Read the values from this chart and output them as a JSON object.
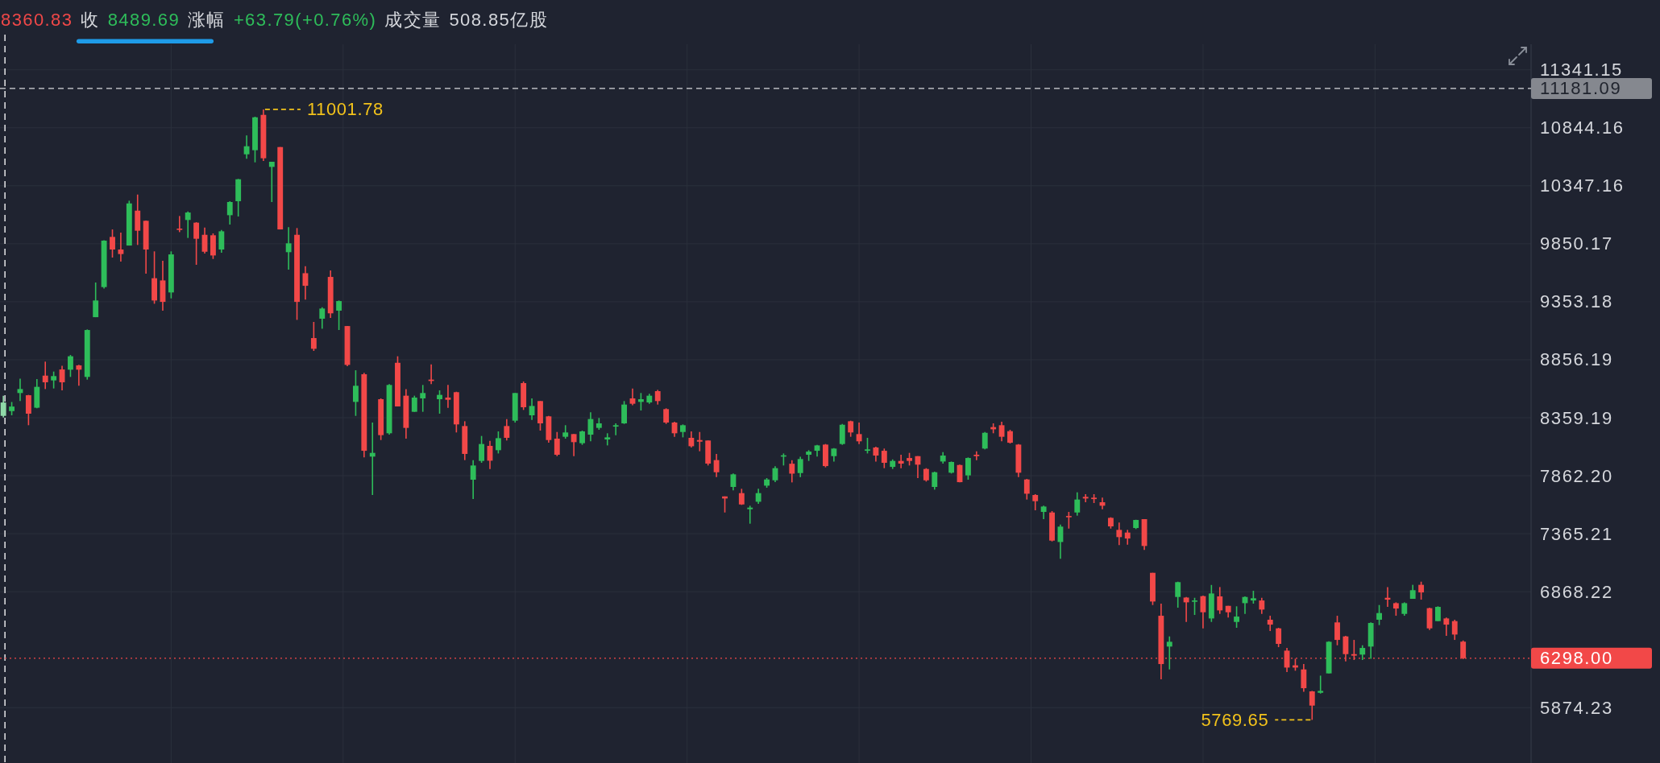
{
  "chart_data": {
    "type": "candlestick",
    "title": "8360.83 收 8489.69 涨幅 +63.79(+0.76%) 成交量 508.85亿股",
    "categories": [
      null,
      null,
      null,
      null,
      null,
      null,
      null,
      null,
      null,
      null,
      null,
      null,
      null,
      null,
      null,
      null,
      null,
      null,
      null,
      null,
      null,
      null,
      null,
      null,
      null,
      null,
      null,
      null,
      null,
      null,
      null,
      null,
      null,
      null,
      null,
      null,
      null,
      null,
      null,
      null,
      null,
      null,
      null,
      null,
      null,
      null,
      null,
      null,
      null,
      null,
      null,
      null,
      null,
      null,
      null,
      null,
      null,
      null,
      null,
      null,
      null,
      null,
      null,
      null,
      null,
      null,
      null,
      null,
      null,
      null,
      null,
      null,
      null,
      null,
      null,
      null,
      null,
      null,
      null,
      null,
      null,
      null,
      null,
      null,
      null,
      null,
      null,
      null,
      null,
      null,
      null,
      null,
      null,
      null,
      null,
      null,
      null,
      null,
      null,
      null,
      null,
      null,
      null,
      null,
      null,
      null,
      null,
      null,
      null,
      null,
      null,
      null,
      null,
      null,
      null,
      null,
      null,
      null,
      null,
      null,
      null,
      null,
      null,
      null,
      null,
      null,
      null,
      null,
      null,
      null,
      null,
      null,
      null,
      null,
      null,
      null,
      null,
      null,
      null,
      null,
      null,
      null,
      null,
      null,
      null,
      null,
      null,
      null,
      null,
      null,
      null,
      null,
      null,
      null,
      null,
      null,
      null,
      null,
      null,
      null,
      null,
      null,
      null,
      null,
      null,
      null,
      null,
      null,
      null,
      null,
      null,
      null,
      null,
      null,
      null
    ],
    "ohlc": [
      [
        8375,
        8548,
        8360.83,
        8489.69
      ],
      [
        8416,
        8494,
        8380,
        8455
      ],
      [
        8571,
        8693,
        8502,
        8605
      ],
      [
        8552,
        8555,
        8295,
        8394
      ],
      [
        8445,
        8690,
        8440,
        8624
      ],
      [
        8720,
        8840,
        8605,
        8663
      ],
      [
        8679,
        8755,
        8610,
        8716
      ],
      [
        8773,
        8805,
        8594,
        8663
      ],
      [
        8771,
        8897,
        8709,
        8886
      ],
      [
        8808,
        8812,
        8633,
        8771
      ],
      [
        8709,
        9116,
        8686,
        9111
      ],
      [
        9221,
        9518,
        9221,
        9364
      ],
      [
        9479,
        9881,
        9467,
        9877
      ],
      [
        9909,
        9973,
        9732,
        9801
      ],
      [
        9801,
        9946,
        9697,
        9762
      ],
      [
        9835,
        10219,
        9835,
        10196
      ],
      [
        10134,
        10272,
        9840,
        9962
      ],
      [
        10047,
        10049,
        9594,
        9801
      ],
      [
        9555,
        9785,
        9336,
        9364
      ],
      [
        9536,
        9704,
        9277,
        9352
      ],
      [
        9433,
        9785,
        9382,
        9759
      ],
      [
        9980,
        10088,
        9950,
        9969
      ],
      [
        10054,
        10127,
        9900,
        10118
      ],
      [
        10031,
        10035,
        9670,
        9893
      ],
      [
        9927,
        9989,
        9766,
        9782
      ],
      [
        9923,
        9939,
        9720,
        9750
      ],
      [
        9801,
        9969,
        9773,
        9957
      ],
      [
        10095,
        10215,
        10015,
        10208
      ],
      [
        10215,
        10406,
        10084,
        10403
      ],
      [
        10617,
        10778,
        10578,
        10686
      ],
      [
        10652,
        10939,
        10548,
        10934
      ],
      [
        10955,
        11001.78,
        10560,
        10583
      ],
      [
        10509,
        10553,
        10208,
        10553
      ],
      [
        10679,
        10679,
        9973,
        9973
      ],
      [
        9778,
        9992,
        9628,
        9854
      ],
      [
        9927,
        9985,
        9198,
        9352
      ],
      [
        9598,
        9658,
        9371,
        9490
      ],
      [
        9042,
        9180,
        8932,
        8950
      ],
      [
        9208,
        9306,
        9122,
        9295
      ],
      [
        9566,
        9621,
        9214,
        9254
      ],
      [
        9277,
        9364,
        9111,
        9359
      ],
      [
        9145,
        9145,
        8801,
        8812
      ],
      [
        8495,
        8766,
        8375,
        8633
      ],
      [
        8732,
        8743,
        8019,
        8076
      ],
      [
        8026,
        8318,
        7697,
        8058
      ],
      [
        8518,
        8525,
        8168,
        8210
      ],
      [
        8226,
        8647,
        8214,
        8640
      ],
      [
        8830,
        8886,
        8456,
        8456
      ],
      [
        8548,
        8605,
        8180,
        8272
      ],
      [
        8410,
        8548,
        8410,
        8532
      ],
      [
        8525,
        8640,
        8410,
        8571
      ],
      [
        8686,
        8817,
        8647,
        8674
      ],
      [
        8518,
        8594,
        8394,
        8555
      ],
      [
        8532,
        8640,
        8444,
        8513
      ],
      [
        8578,
        8582,
        8233,
        8302
      ],
      [
        8288,
        8329,
        7996,
        8049
      ],
      [
        7828,
        7996,
        7662,
        7950
      ],
      [
        7989,
        8203,
        7973,
        8134
      ],
      [
        8118,
        8161,
        7920,
        7991
      ],
      [
        8081,
        8242,
        8053,
        8184
      ],
      [
        8288,
        8348,
        8164,
        8187
      ],
      [
        8334,
        8571,
        8318,
        8571
      ],
      [
        8656,
        8670,
        8426,
        8449
      ],
      [
        8380,
        8525,
        8341,
        8460
      ],
      [
        8502,
        8502,
        8249,
        8311
      ],
      [
        8371,
        8375,
        8145,
        8168
      ],
      [
        8180,
        8237,
        8030,
        8042
      ],
      [
        8196,
        8295,
        8180,
        8233
      ],
      [
        8219,
        8219,
        8030,
        8150
      ],
      [
        8141,
        8249,
        8127,
        8242
      ],
      [
        8214,
        8405,
        8157,
        8348
      ],
      [
        8272,
        8357,
        8256,
        8311
      ],
      [
        8173,
        8226,
        8122,
        8191
      ],
      [
        8283,
        8311,
        8210,
        8295
      ],
      [
        8311,
        8502,
        8306,
        8472
      ],
      [
        8525,
        8610,
        8467,
        8479
      ],
      [
        8495,
        8571,
        8421,
        8518
      ],
      [
        8490,
        8564,
        8479,
        8548
      ],
      [
        8587,
        8598,
        8472,
        8502
      ],
      [
        8433,
        8440,
        8306,
        8318
      ],
      [
        8318,
        8325,
        8196,
        8226
      ],
      [
        8237,
        8302,
        8191,
        8295
      ],
      [
        8187,
        8242,
        8104,
        8115
      ],
      [
        8168,
        8237,
        8072,
        8154
      ],
      [
        8164,
        8164,
        7950,
        7966
      ],
      [
        7996,
        8049,
        7851,
        7892
      ],
      [
        7685,
        7685,
        7547,
        7667
      ],
      [
        7766,
        7881,
        7736,
        7874
      ],
      [
        7713,
        7750,
        7612,
        7616
      ],
      [
        7575,
        7605,
        7451,
        7589
      ],
      [
        7639,
        7750,
        7621,
        7713
      ],
      [
        7777,
        7842,
        7759,
        7830
      ],
      [
        7823,
        7943,
        7807,
        7927
      ],
      [
        8026,
        8053,
        7950,
        8037
      ],
      [
        7965,
        7995,
        7805,
        7880
      ],
      [
        7885,
        8025,
        7850,
        8005
      ],
      [
        8042,
        8081,
        7989,
        8069
      ],
      [
        8076,
        8127,
        8026,
        8122
      ],
      [
        8129,
        8134,
        7934,
        7945
      ],
      [
        8030,
        8099,
        7984,
        8095
      ],
      [
        8134,
        8306,
        8127,
        8299
      ],
      [
        8329,
        8334,
        8196,
        8233
      ],
      [
        8219,
        8318,
        8134,
        8157
      ],
      [
        8076,
        8187,
        8053,
        8088
      ],
      [
        8104,
        8111,
        7984,
        8035
      ],
      [
        8076,
        8095,
        7927,
        7973
      ],
      [
        7938,
        8002,
        7920,
        7989
      ],
      [
        7989,
        8042,
        7927,
        7966
      ],
      [
        8014,
        8058,
        7950,
        7989
      ],
      [
        8030,
        8030,
        7842,
        7957
      ],
      [
        7920,
        7927,
        7812,
        7823
      ],
      [
        7766,
        7897,
        7743,
        7892
      ],
      [
        7984,
        8065,
        7966,
        8035
      ],
      [
        7888,
        7984,
        7881,
        7980
      ],
      [
        7954,
        7957,
        7805,
        7807
      ],
      [
        7865,
        8019,
        7828,
        8014
      ],
      [
        8042,
        8072,
        7996,
        8030
      ],
      [
        8095,
        8237,
        8088,
        8230
      ],
      [
        8279,
        8311,
        8226,
        8260
      ],
      [
        8295,
        8325,
        8157,
        8196
      ],
      [
        8244,
        8256,
        8138,
        8145
      ],
      [
        8129,
        8134,
        7851,
        7888
      ],
      [
        7830,
        7835,
        7658,
        7708
      ],
      [
        7697,
        7704,
        7566,
        7644
      ],
      [
        7552,
        7605,
        7490,
        7598
      ],
      [
        7547,
        7559,
        7299,
        7306
      ],
      [
        7294,
        7444,
        7150,
        7426
      ],
      [
        7517,
        7552,
        7409,
        7506
      ],
      [
        7547,
        7720,
        7520,
        7658
      ],
      [
        7681,
        7704,
        7635,
        7667
      ],
      [
        7674,
        7704,
        7628,
        7662
      ],
      [
        7635,
        7674,
        7575,
        7605
      ],
      [
        7501,
        7506,
        7409,
        7428
      ],
      [
        7398,
        7460,
        7267,
        7336
      ],
      [
        7375,
        7398,
        7271,
        7324
      ],
      [
        7414,
        7485,
        7405,
        7483
      ],
      [
        7490,
        7490,
        7226,
        7260
      ],
      [
        7030,
        7030,
        6754,
        6784
      ],
      [
        6662,
        6766,
        6117,
        6248
      ],
      [
        6398,
        6485,
        6202,
        6439
      ],
      [
        6823,
        6954,
        6731,
        6950
      ],
      [
        6818,
        6823,
        6609,
        6777
      ],
      [
        6784,
        6816,
        6669,
        6793
      ],
      [
        6830,
        6834,
        6554,
        6692
      ],
      [
        6639,
        6926,
        6609,
        6853
      ],
      [
        6828,
        6908,
        6678,
        6708
      ],
      [
        6747,
        6747,
        6646,
        6692
      ],
      [
        6609,
        6743,
        6559,
        6655
      ],
      [
        6770,
        6828,
        6678,
        6823
      ],
      [
        6793,
        6876,
        6766,
        6812
      ],
      [
        6793,
        6816,
        6678,
        6715
      ],
      [
        6628,
        6662,
        6531,
        6586
      ],
      [
        6554,
        6559,
        6393,
        6421
      ],
      [
        6363,
        6386,
        6179,
        6218
      ],
      [
        6237,
        6294,
        6191,
        6218
      ],
      [
        6202,
        6248,
        6011,
        6041
      ],
      [
        6014,
        6018,
        5769.65,
        5892
      ],
      [
        6002,
        6149,
        5995,
        6018
      ],
      [
        6168,
        6444,
        6168,
        6439
      ],
      [
        6605,
        6662,
        6409,
        6455
      ],
      [
        6485,
        6490,
        6271,
        6333
      ],
      [
        6333,
        6455,
        6283,
        6320
      ],
      [
        6329,
        6409,
        6283,
        6386
      ],
      [
        6398,
        6605,
        6294,
        6600
      ],
      [
        6628,
        6754,
        6582,
        6685
      ],
      [
        6816,
        6908,
        6738,
        6800
      ],
      [
        6770,
        6777,
        6662,
        6724
      ],
      [
        6678,
        6777,
        6662,
        6770
      ],
      [
        6807,
        6927,
        6807,
        6881
      ],
      [
        6927,
        6954,
        6800,
        6862
      ],
      [
        6727,
        6731,
        6540,
        6554
      ],
      [
        6616,
        6743,
        6616,
        6738
      ],
      [
        6639,
        6646,
        6490,
        6586
      ],
      [
        6616,
        6628,
        6455,
        6501
      ],
      [
        6440,
        6450,
        6290,
        6298
      ]
    ],
    "colors": [
      "#8fd9a8",
      "#2ebd5a",
      "#2ebd5a",
      "#f24848",
      "#2ebd5a",
      "#f24848",
      "#2ebd5a",
      "#f24848",
      "#2ebd5a",
      "#f24848",
      "#2ebd5a",
      "#2ebd5a",
      "#2ebd5a",
      "#f24848",
      "#f24848",
      "#2ebd5a",
      "#f24848",
      "#f24848",
      "#f24848",
      "#f24848",
      "#2ebd5a",
      "#f24848",
      "#2ebd5a",
      "#f24848",
      "#f24848",
      "#f24848",
      "#2ebd5a",
      "#2ebd5a",
      "#2ebd5a",
      "#2ebd5a",
      "#2ebd5a",
      "#f24848",
      "#2ebd5a",
      "#f24848",
      "#2ebd5a",
      "#f24848",
      "#f24848",
      "#f24848",
      "#2ebd5a",
      "#f24848",
      "#2ebd5a",
      "#f24848",
      "#2ebd5a",
      "#f24848",
      "#2ebd5a",
      "#f24848",
      "#2ebd5a",
      "#f24848",
      "#f24848",
      "#2ebd5a",
      "#2ebd5a",
      "#f24848",
      "#2ebd5a",
      "#f24848",
      "#f24848",
      "#f24848",
      "#2ebd5a",
      "#2ebd5a",
      "#f24848",
      "#2ebd5a",
      "#f24848",
      "#2ebd5a",
      "#f24848",
      "#2ebd5a",
      "#f24848",
      "#f24848",
      "#f24848",
      "#2ebd5a",
      "#f24848",
      "#2ebd5a",
      "#2ebd5a",
      "#2ebd5a",
      "#2ebd5a",
      "#2ebd5a",
      "#2ebd5a",
      "#f24848",
      "#2ebd5a",
      "#2ebd5a",
      "#f24848",
      "#f24848",
      "#f24848",
      "#2ebd5a",
      "#f24848",
      "#f24848",
      "#f24848",
      "#f24848",
      "#f24848",
      "#2ebd5a",
      "#f24848",
      "#2ebd5a",
      "#2ebd5a",
      "#2ebd5a",
      "#2ebd5a",
      "#2ebd5a",
      "#f24848",
      "#2ebd5a",
      "#2ebd5a",
      "#2ebd5a",
      "#f24848",
      "#2ebd5a",
      "#2ebd5a",
      "#f24848",
      "#f24848",
      "#2ebd5a",
      "#f24848",
      "#f24848",
      "#2ebd5a",
      "#f24848",
      "#f24848",
      "#f24848",
      "#f24848",
      "#2ebd5a",
      "#2ebd5a",
      "#2ebd5a",
      "#f24848",
      "#2ebd5a",
      "#f24848",
      "#2ebd5a",
      "#f24848",
      "#f24848",
      "#f24848",
      "#f24848",
      "#f24848",
      "#f24848",
      "#2ebd5a",
      "#f24848",
      "#2ebd5a",
      "#f24848",
      "#2ebd5a",
      "#f24848",
      "#f24848",
      "#f24848",
      "#f24848",
      "#f24848",
      "#f24848",
      "#2ebd5a",
      "#f24848",
      "#f24848",
      "#f24848",
      "#2ebd5a",
      "#2ebd5a",
      "#f24848",
      "#2ebd5a",
      "#f24848",
      "#2ebd5a",
      "#f24848",
      "#f24848",
      "#2ebd5a",
      "#2ebd5a",
      "#2ebd5a",
      "#f24848",
      "#f24848",
      "#f24848",
      "#f24848",
      "#f24848",
      "#f24848",
      "#f24848",
      "#2ebd5a",
      "#2ebd5a",
      "#f24848",
      "#f24848",
      "#f24848",
      "#2ebd5a",
      "#2ebd5a",
      "#2ebd5a",
      "#f24848",
      "#f24848",
      "#2ebd5a",
      "#2ebd5a",
      "#f24848",
      "#f24848",
      "#2ebd5a",
      "#f24848",
      "#f24848",
      "#f24848"
    ],
    "ylim": [
      5400,
      11560
    ],
    "yticks": [
      11341.15,
      10844.16,
      10347.16,
      9850.17,
      9353.18,
      8856.19,
      8359.19,
      {
        "value": 7862.2,
        "label": "7862.20"
      },
      7365.21,
      6868.22,
      5874.23
    ],
    "grid": true,
    "ref_lines": [
      {
        "axis": "y",
        "value": 11181.09,
        "label": "11181.09",
        "color": "#d9dadd",
        "line_style": "dashed"
      },
      {
        "axis": "y",
        "value": 6298,
        "label": "6298.00",
        "color": "#f24848",
        "line_style": "dotted"
      }
    ],
    "annotations": [
      "11001.78",
      "5769.65"
    ]
  }
}
